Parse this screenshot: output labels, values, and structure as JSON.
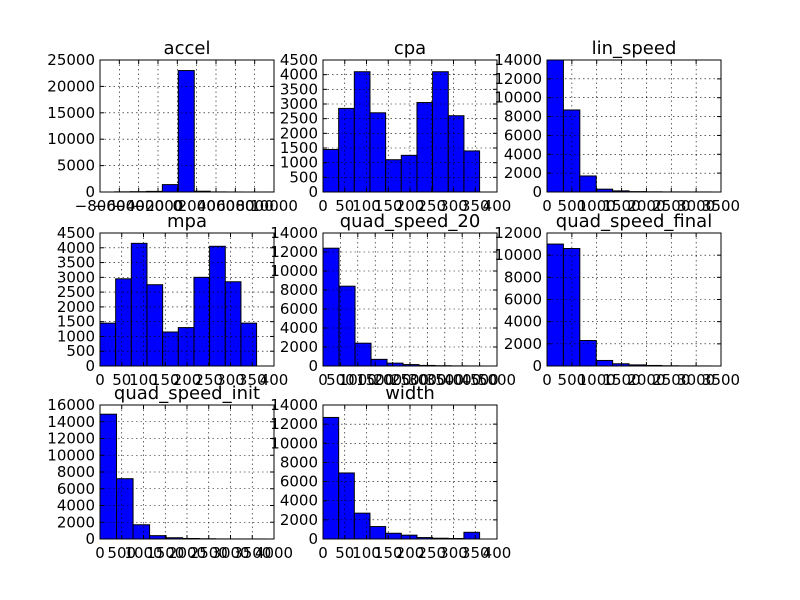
{
  "chart_data": [
    {
      "type": "bar",
      "title": "accel",
      "xlim": [
        -8000,
        10000
      ],
      "ylim": [
        0,
        25000
      ],
      "xticks": [
        -8000,
        -6000,
        -4000,
        -2000,
        0,
        2000,
        4000,
        6000,
        8000,
        10000
      ],
      "xtick_labels": [
        "−8000",
        "−6000",
        "−4000",
        "−2000",
        "0",
        "2000",
        "4000",
        "6000",
        "8000",
        "10000"
      ],
      "yticks": [
        0,
        5000,
        10000,
        15000,
        20000,
        25000
      ],
      "ytick_labels": [
        "0",
        "5000",
        "10000",
        "15000",
        "20000",
        "25000"
      ],
      "bin_edges": [
        -6500,
        -4850,
        -3200,
        -1550,
        100,
        1750,
        3400,
        5050,
        6700,
        8350,
        10000
      ],
      "values": [
        30,
        60,
        120,
        1400,
        23000,
        150,
        20,
        5,
        0,
        3
      ]
    },
    {
      "type": "bar",
      "title": "cpa",
      "xlim": [
        0,
        400
      ],
      "ylim": [
        0,
        4500
      ],
      "xticks": [
        0,
        50,
        100,
        150,
        200,
        250,
        300,
        350,
        400
      ],
      "xtick_labels": [
        "0",
        "50",
        "100",
        "150",
        "200",
        "250",
        "300",
        "350",
        "400"
      ],
      "yticks": [
        0,
        500,
        1000,
        1500,
        2000,
        2500,
        3000,
        3500,
        4000,
        4500
      ],
      "ytick_labels": [
        "0",
        "500",
        "1000",
        "1500",
        "2000",
        "2500",
        "3000",
        "3500",
        "4000",
        "4500"
      ],
      "bin_edges": [
        0,
        36,
        72,
        108,
        144,
        180,
        216,
        252,
        288,
        324,
        360
      ],
      "values": [
        1450,
        2850,
        4100,
        2700,
        1100,
        1250,
        3050,
        4100,
        2600,
        1400
      ]
    },
    {
      "type": "bar",
      "title": "lin_speed",
      "xlim": [
        0,
        3500
      ],
      "ylim": [
        0,
        14000
      ],
      "xticks": [
        0,
        500,
        1000,
        1500,
        2000,
        2500,
        3000,
        3500
      ],
      "xtick_labels": [
        "0",
        "500",
        "1000",
        "1500",
        "2000",
        "2500",
        "3000",
        "3500"
      ],
      "yticks": [
        0,
        2000,
        4000,
        6000,
        8000,
        10000,
        12000,
        14000
      ],
      "ytick_labels": [
        "0",
        "2000",
        "4000",
        "6000",
        "8000",
        "10000",
        "12000",
        "14000"
      ],
      "bin_edges": [
        0,
        330,
        660,
        990,
        1320,
        1650,
        1980,
        2310,
        2640,
        2970,
        3300
      ],
      "values": [
        14000,
        8700,
        1700,
        300,
        120,
        40,
        20,
        10,
        5,
        5
      ]
    },
    {
      "type": "bar",
      "title": "mpa",
      "xlim": [
        0,
        400
      ],
      "ylim": [
        0,
        4500
      ],
      "xticks": [
        0,
        50,
        100,
        150,
        200,
        250,
        300,
        350,
        400
      ],
      "xtick_labels": [
        "0",
        "50",
        "100",
        "150",
        "200",
        "250",
        "300",
        "350",
        "400"
      ],
      "yticks": [
        0,
        500,
        1000,
        1500,
        2000,
        2500,
        3000,
        3500,
        4000,
        4500
      ],
      "ytick_labels": [
        "0",
        "500",
        "1000",
        "1500",
        "2000",
        "2500",
        "3000",
        "3500",
        "4000",
        "4500"
      ],
      "bin_edges": [
        0,
        36,
        72,
        108,
        144,
        180,
        216,
        252,
        288,
        324,
        360
      ],
      "values": [
        1450,
        2950,
        4150,
        2750,
        1150,
        1300,
        3000,
        4050,
        2850,
        1450
      ]
    },
    {
      "type": "bar",
      "title": "quad_speed_20",
      "xlim": [
        0,
        5000
      ],
      "ylim": [
        0,
        14000
      ],
      "xticks": [
        0,
        500,
        1000,
        1500,
        2000,
        2500,
        3000,
        3500,
        4000,
        4500,
        5000
      ],
      "xtick_labels": [
        "0",
        "500",
        "1000",
        "1500",
        "2000",
        "2500",
        "3000",
        "3500",
        "4000",
        "4500",
        "5000"
      ],
      "yticks": [
        0,
        2000,
        4000,
        6000,
        8000,
        10000,
        12000,
        14000
      ],
      "ytick_labels": [
        "0",
        "2000",
        "4000",
        "6000",
        "8000",
        "10000",
        "12000",
        "14000"
      ],
      "bin_edges": [
        0,
        460,
        920,
        1380,
        1840,
        2300,
        2760,
        3220,
        3680,
        4140,
        4600
      ],
      "values": [
        12400,
        8400,
        2400,
        700,
        300,
        150,
        60,
        30,
        10,
        5
      ]
    },
    {
      "type": "bar",
      "title": "quad_speed_final",
      "xlim": [
        0,
        3500
      ],
      "ylim": [
        0,
        12000
      ],
      "xticks": [
        0,
        500,
        1000,
        1500,
        2000,
        2500,
        3000,
        3500
      ],
      "xtick_labels": [
        "0",
        "500",
        "1000",
        "1500",
        "2000",
        "2500",
        "3000",
        "3500"
      ],
      "yticks": [
        0,
        2000,
        4000,
        6000,
        8000,
        10000,
        12000
      ],
      "ytick_labels": [
        "0",
        "2000",
        "4000",
        "6000",
        "8000",
        "10000",
        "12000"
      ],
      "bin_edges": [
        0,
        330,
        660,
        990,
        1320,
        1650,
        1980,
        2310,
        2640,
        2970,
        3300
      ],
      "values": [
        11000,
        10600,
        2300,
        500,
        200,
        100,
        50,
        20,
        10,
        5
      ]
    },
    {
      "type": "bar",
      "title": "quad_speed_init",
      "xlim": [
        0,
        4000
      ],
      "ylim": [
        0,
        16000
      ],
      "xticks": [
        0,
        500,
        1000,
        1500,
        2000,
        2500,
        3000,
        3500,
        4000
      ],
      "xtick_labels": [
        "0",
        "500",
        "1000",
        "1500",
        "2000",
        "2500",
        "3000",
        "3500",
        "4000"
      ],
      "yticks": [
        0,
        2000,
        4000,
        6000,
        8000,
        10000,
        12000,
        14000,
        16000
      ],
      "ytick_labels": [
        "0",
        "2000",
        "4000",
        "6000",
        "8000",
        "10000",
        "12000",
        "14000",
        "16000"
      ],
      "bin_edges": [
        0,
        380,
        760,
        1140,
        1520,
        1900,
        2280,
        2660,
        3040,
        3420,
        3800
      ],
      "values": [
        14900,
        7200,
        1700,
        400,
        150,
        60,
        30,
        10,
        5,
        5
      ]
    },
    {
      "type": "bar",
      "title": "width",
      "xlim": [
        0,
        400
      ],
      "ylim": [
        0,
        14000
      ],
      "xticks": [
        0,
        50,
        100,
        150,
        200,
        250,
        300,
        350,
        400
      ],
      "xtick_labels": [
        "0",
        "50",
        "100",
        "150",
        "200",
        "250",
        "300",
        "350",
        "400"
      ],
      "yticks": [
        0,
        2000,
        4000,
        6000,
        8000,
        10000,
        12000,
        14000
      ],
      "ytick_labels": [
        "0",
        "2000",
        "4000",
        "6000",
        "8000",
        "10000",
        "12000",
        "14000"
      ],
      "bin_edges": [
        0,
        36,
        72,
        108,
        144,
        180,
        216,
        252,
        288,
        324,
        360
      ],
      "values": [
        12700,
        6900,
        2700,
        1300,
        600,
        400,
        150,
        80,
        50,
        700
      ]
    }
  ]
}
